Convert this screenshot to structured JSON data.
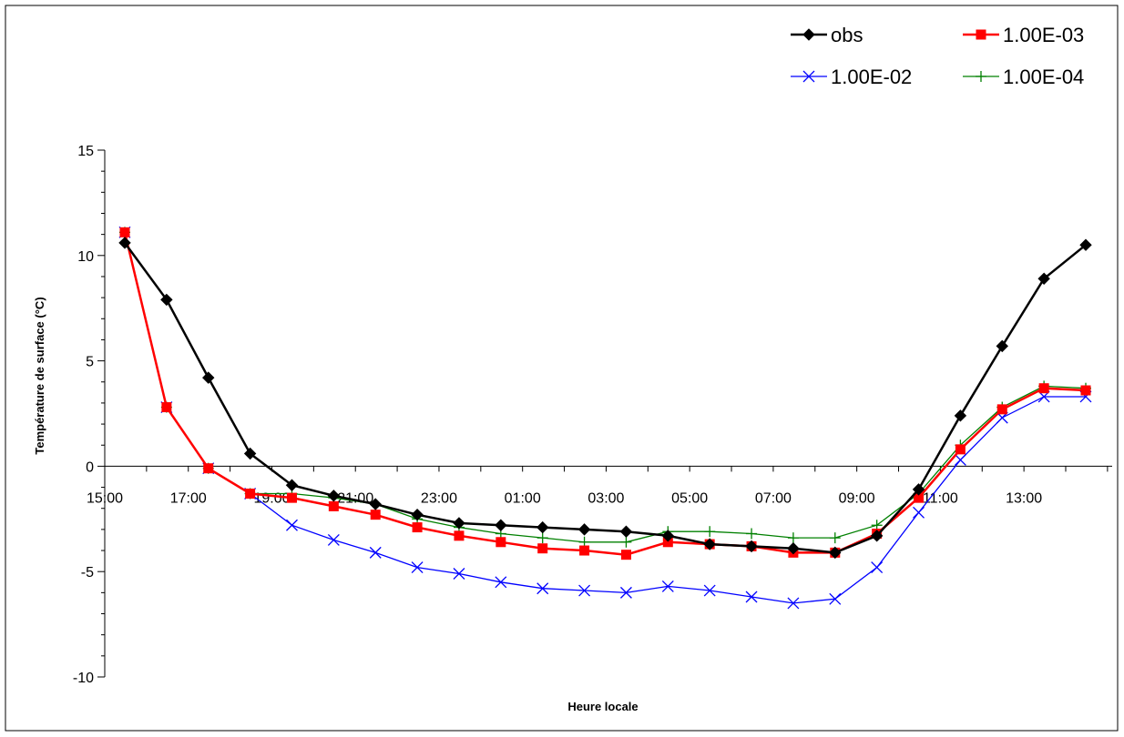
{
  "chart_data": {
    "type": "line",
    "title": "",
    "xlabel": "Heure locale",
    "ylabel": "Température de surface   (°C)",
    "ylim": [
      -10,
      15
    ],
    "yticks": [
      -10,
      -5,
      0,
      5,
      10,
      15
    ],
    "x": [
      "15:00",
      "16:00",
      "17:00",
      "18:00",
      "19:00",
      "20:00",
      "21:00",
      "22:00",
      "23:00",
      "00:00",
      "01:00",
      "02:00",
      "03:00",
      "04:00",
      "05:00",
      "06:00",
      "07:00",
      "08:00",
      "09:00",
      "10:00",
      "11:00",
      "12:00",
      "13:00",
      "14:00"
    ],
    "xtick_labels": [
      "15:00",
      "17:00",
      "19:00",
      "21:00",
      "23:00",
      "01:00",
      "03:00",
      "05:00",
      "07:00",
      "09:00",
      "11:00",
      "13:00"
    ],
    "grid": false,
    "legend_position": "top-right",
    "series": [
      {
        "name": "obs",
        "color": "#000000",
        "marker": "diamond",
        "values": [
          10.6,
          7.9,
          4.2,
          0.6,
          -0.9,
          -1.4,
          -1.8,
          -2.3,
          -2.7,
          -2.8,
          -2.9,
          -3.0,
          -3.1,
          -3.3,
          -3.7,
          -3.8,
          -3.9,
          -4.1,
          -3.3,
          -1.1,
          2.4,
          5.7,
          8.9,
          10.5
        ]
      },
      {
        "name": "1.00E-03",
        "color": "#ff0000",
        "marker": "square",
        "values": [
          11.1,
          2.8,
          -0.1,
          -1.3,
          -1.5,
          -1.9,
          -2.3,
          -2.9,
          -3.3,
          -3.6,
          -3.9,
          -4.0,
          -4.2,
          -3.6,
          -3.7,
          -3.8,
          -4.1,
          -4.1,
          -3.2,
          -1.5,
          0.8,
          2.7,
          3.7,
          3.6
        ]
      },
      {
        "name": "1.00E-02",
        "color": "#0000ff",
        "marker": "x",
        "values": [
          11.1,
          2.8,
          -0.1,
          -1.3,
          -2.8,
          -3.5,
          -4.1,
          -4.8,
          -5.1,
          -5.5,
          -5.8,
          -5.9,
          -6.0,
          -5.7,
          -5.9,
          -6.2,
          -6.5,
          -6.3,
          -4.8,
          -2.2,
          0.3,
          2.3,
          3.3,
          3.3
        ]
      },
      {
        "name": "1.00E-04",
        "color": "#008000",
        "marker": "plus",
        "values": [
          11.1,
          2.8,
          -0.1,
          -1.3,
          -1.3,
          -1.5,
          -1.8,
          -2.5,
          -2.9,
          -3.2,
          -3.4,
          -3.6,
          -3.6,
          -3.1,
          -3.1,
          -3.2,
          -3.4,
          -3.4,
          -2.8,
          -1.3,
          1.0,
          2.8,
          3.8,
          3.7
        ]
      }
    ]
  }
}
